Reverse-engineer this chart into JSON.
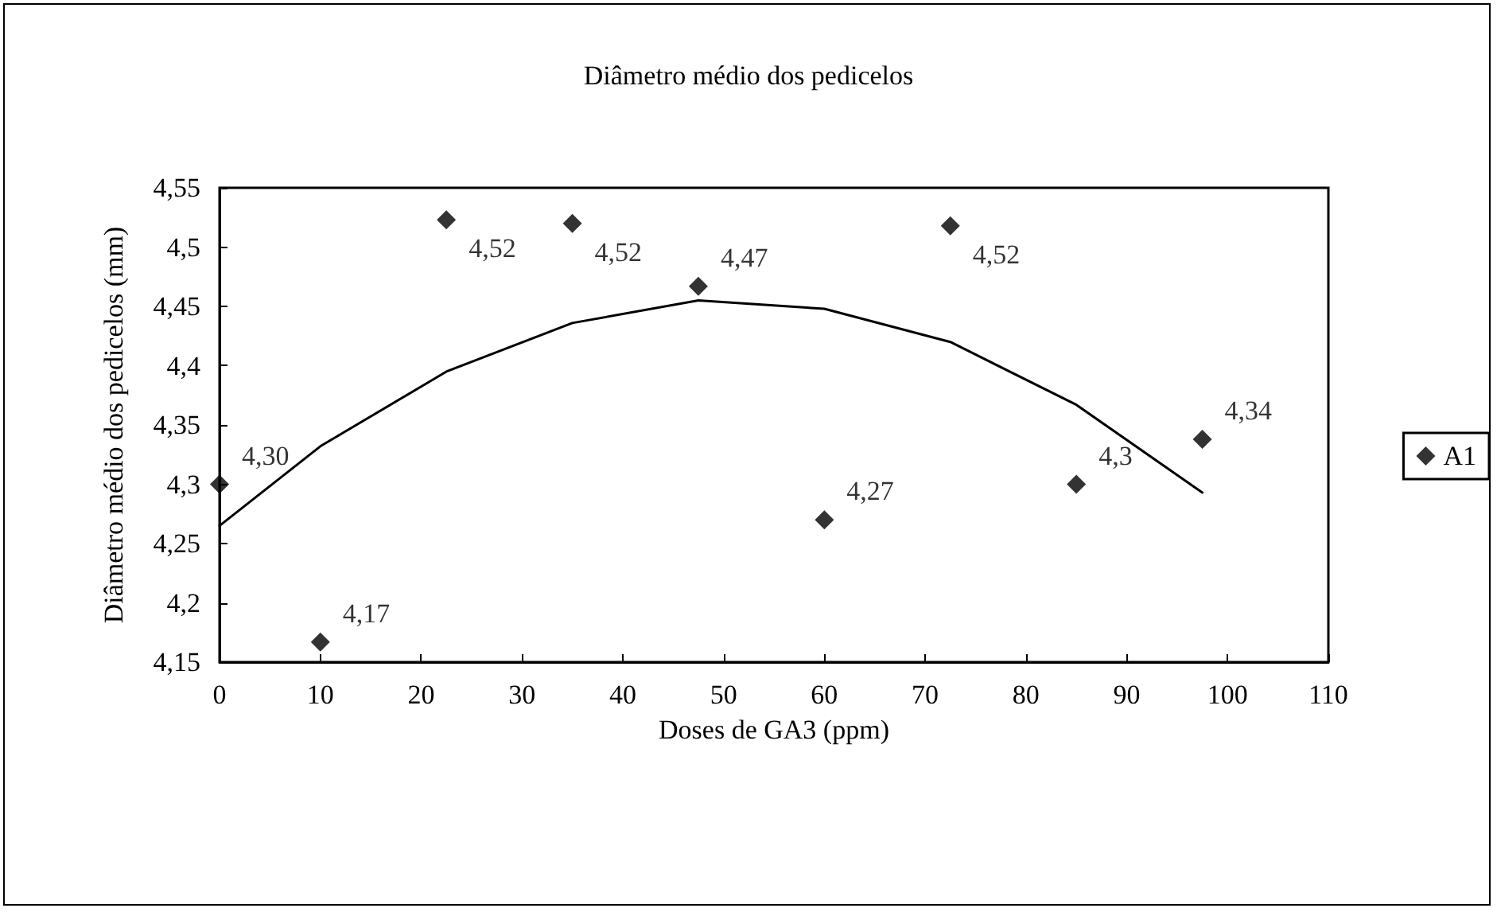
{
  "chart_data": {
    "type": "scatter",
    "title": "Diâmetro médio dos pedicelos",
    "xlabel": "Doses de GA3 (ppm)",
    "ylabel": "Diâmetro médio dos pedicelos (mm)",
    "x": [
      0,
      10,
      22.5,
      35,
      47.5,
      60,
      72.5,
      85,
      97.5
    ],
    "series": [
      {
        "name": "A1",
        "color": "#000000",
        "marker": "diamond",
        "values": [
          4.3,
          4.167,
          4.523,
          4.52,
          4.467,
          4.27,
          4.518,
          4.3,
          4.338
        ],
        "value_labels": [
          "4,30",
          "4,17",
          "4,52",
          "4,52",
          "4,47",
          "4,27",
          "4,52",
          "4,3",
          "4,34"
        ]
      },
      {
        "type": "line",
        "color": "#000000",
        "marker": "none",
        "line_style": "solid",
        "x": [
          0,
          10,
          22.5,
          35,
          47.5,
          60,
          72.5,
          85,
          97.5
        ],
        "values": [
          4.265,
          4.332,
          4.395,
          4.436,
          4.455,
          4.448,
          4.42,
          4.367,
          4.293
        ]
      }
    ],
    "xlim": [
      0,
      110
    ],
    "xticks": [
      0,
      10,
      20,
      30,
      40,
      50,
      60,
      70,
      80,
      90,
      100,
      110
    ],
    "ylim": [
      4.15,
      4.55
    ],
    "yticks": [
      {
        "value": 4.15,
        "label": "4,15"
      },
      {
        "value": 4.2,
        "label": "4,2"
      },
      {
        "value": 4.25,
        "label": "4,25"
      },
      {
        "value": 4.3,
        "label": "4,3"
      },
      {
        "value": 4.35,
        "label": "4,35"
      },
      {
        "value": 4.4,
        "label": "4,4"
      },
      {
        "value": 4.45,
        "label": "4,45"
      },
      {
        "value": 4.5,
        "label": "4,5"
      },
      {
        "value": 4.55,
        "label": "4,55"
      }
    ],
    "grid": false,
    "legend": "right"
  }
}
